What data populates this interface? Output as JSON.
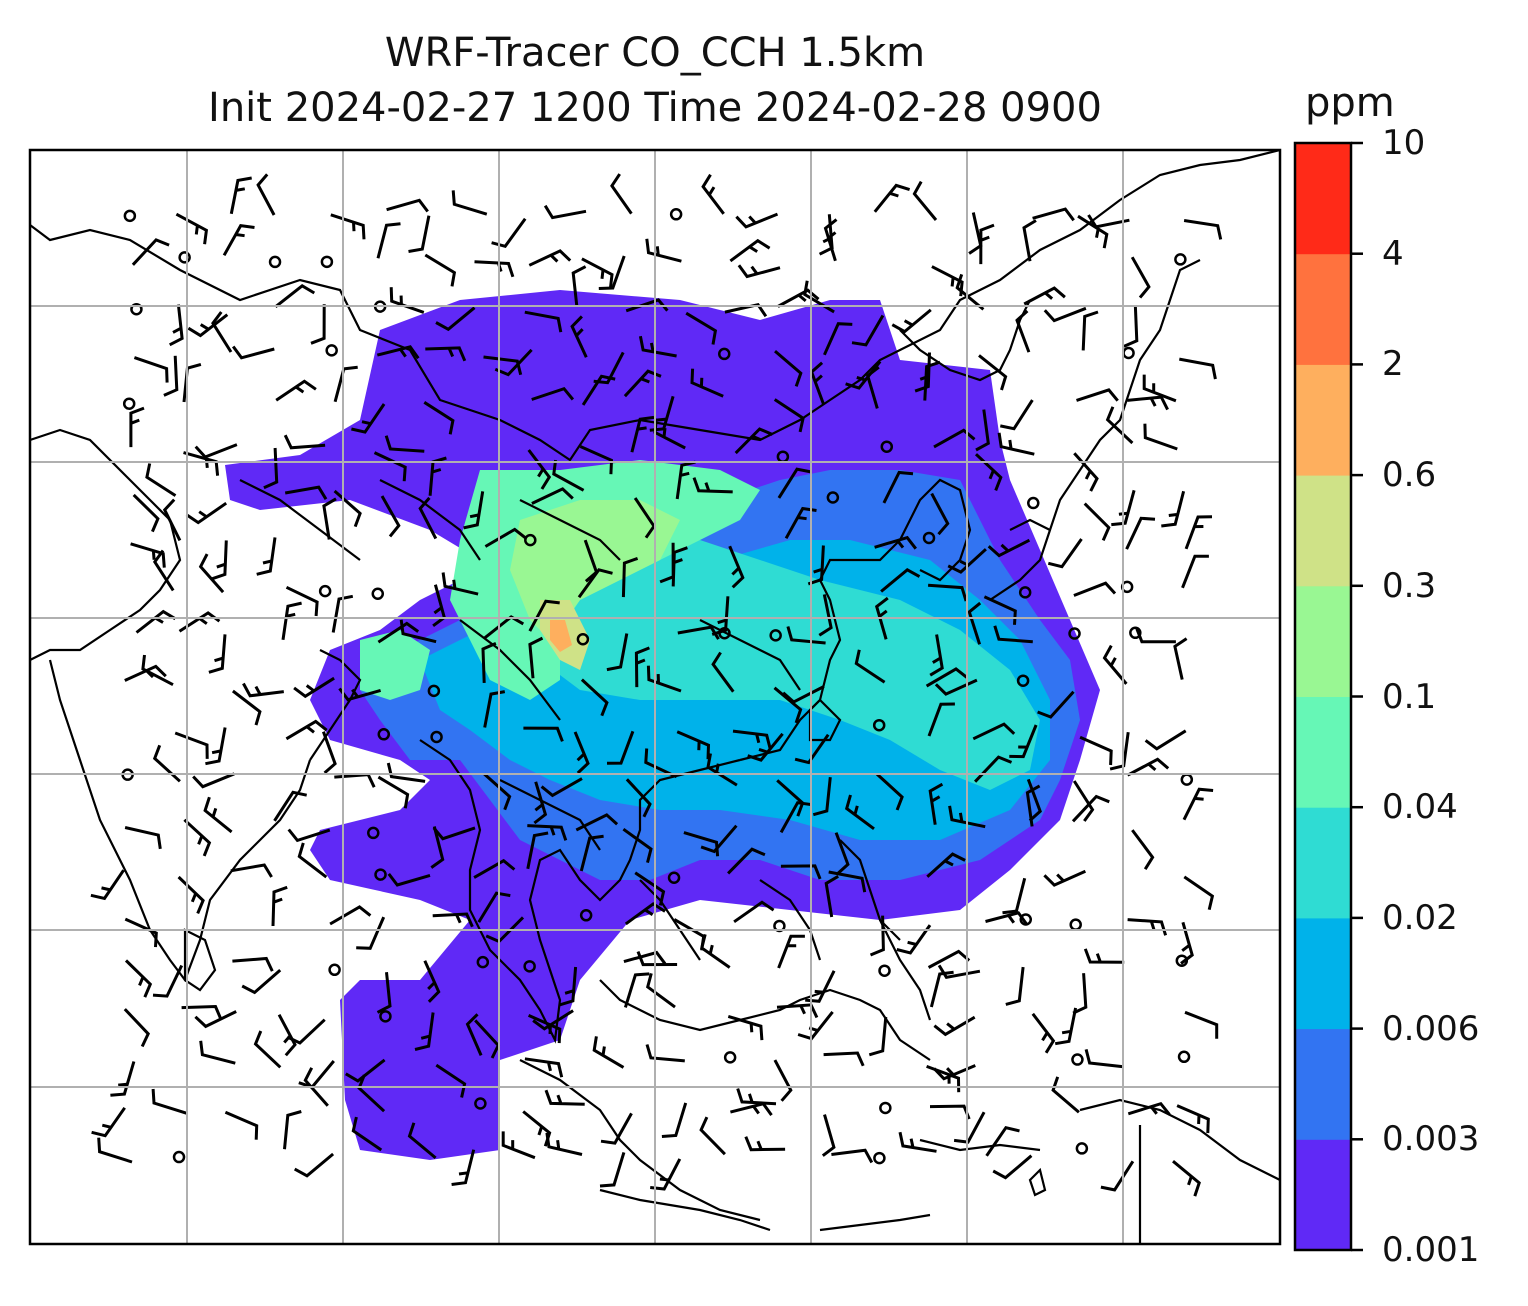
{
  "title": {
    "line1": "WRF-Tracer CO_CCH 1.5km",
    "line2": "Init 2024-02-27 1200 Time 2024-02-28 0900"
  },
  "colorbar": {
    "unit": "ppm",
    "levels": [
      "0.001",
      "0.003",
      "0.006",
      "0.02",
      "0.04",
      "0.1",
      "0.3",
      "0.6",
      "2",
      "4",
      "10"
    ],
    "colors": [
      "#6029f6",
      "#3274f2",
      "#00b2ea",
      "#2fdcd3",
      "#66f7b6",
      "#99f793",
      "#cfe287",
      "#feaf5e",
      "#ff723e",
      "#ff2a18"
    ]
  },
  "map": {
    "gridlines": true,
    "field": "CO tracer concentration",
    "overlay": "wind barbs"
  }
}
